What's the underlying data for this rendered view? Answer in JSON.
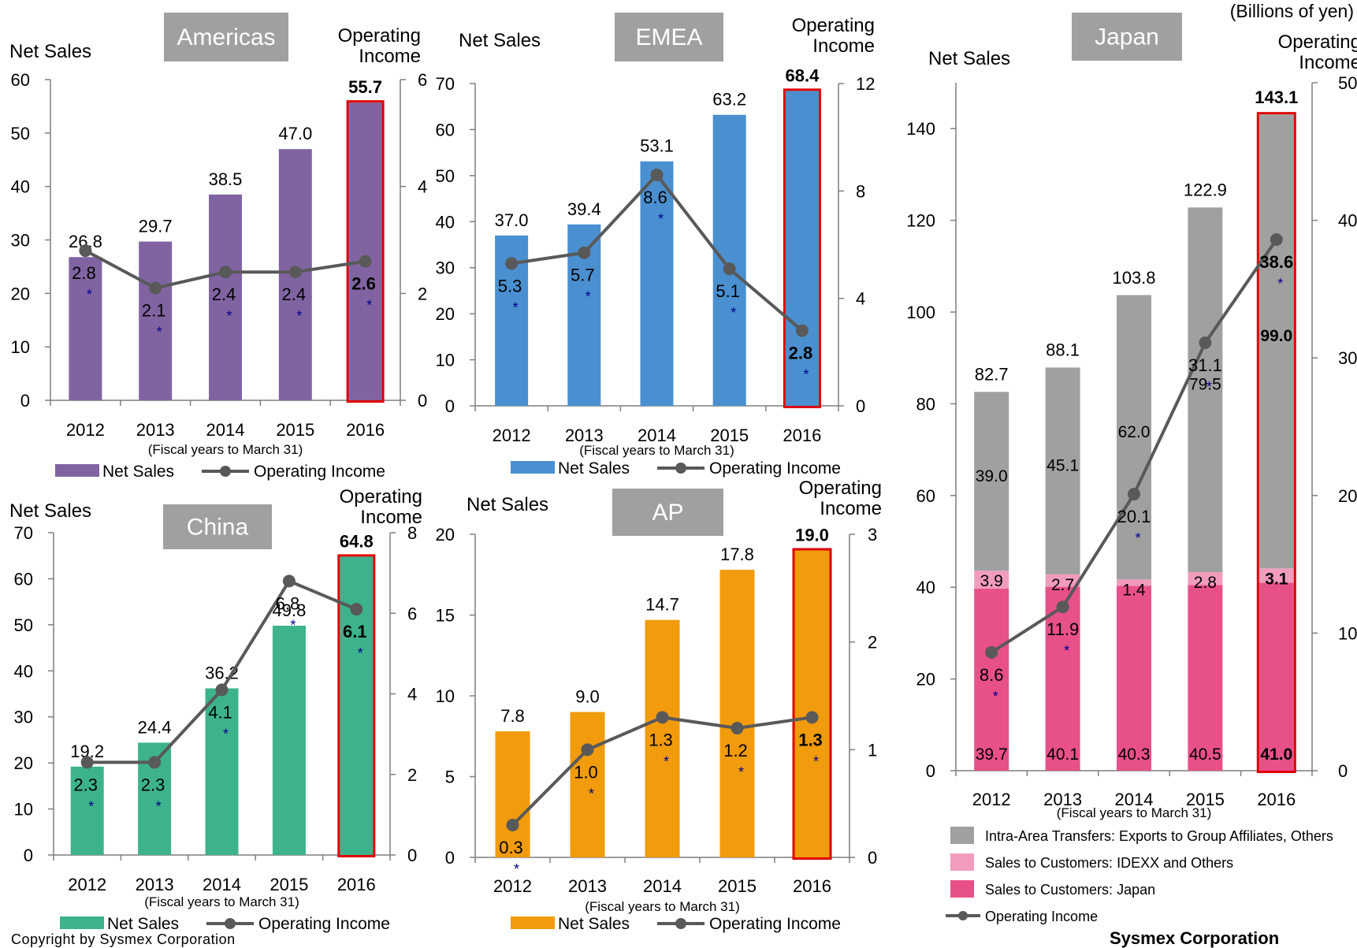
{
  "header": {
    "units": "(Billions of yen)"
  },
  "footer": {
    "copyright": "Copyright by Sysmex Corporation",
    "company": "Sysmex Corporation"
  },
  "common": {
    "y_left_label": "Net Sales",
    "y_right_label_line1": "Operating",
    "y_right_label_line2": "Income",
    "x_caption": "(Fiscal years to March 31)",
    "legend_net_sales": "Net Sales",
    "legend_operating_income": "Operating Income",
    "asterisk": "*"
  },
  "chart_data": [
    {
      "id": "americas",
      "type": "bar",
      "title": "Americas",
      "categories": [
        "2012",
        "2013",
        "2014",
        "2015",
        "2016"
      ],
      "series": [
        {
          "name": "Net Sales",
          "values": [
            26.8,
            29.7,
            38.5,
            47.0,
            55.7
          ],
          "axis": "left",
          "color": "#8064a2"
        },
        {
          "name": "Operating Income",
          "values": [
            2.8,
            2.1,
            2.4,
            2.4,
            2.6
          ],
          "axis": "right",
          "type": "line",
          "color": "#595959"
        }
      ],
      "ylim": [
        0,
        60
      ],
      "y2lim": [
        0,
        6
      ],
      "yticks": [
        0,
        10,
        20,
        30,
        40,
        50,
        60
      ],
      "y2ticks": [
        0,
        2,
        4,
        6
      ]
    },
    {
      "id": "emea",
      "type": "bar",
      "title": "EMEA",
      "categories": [
        "2012",
        "2013",
        "2014",
        "2015",
        "2016"
      ],
      "series": [
        {
          "name": "Net Sales",
          "values": [
            37.0,
            39.4,
            53.1,
            63.2,
            68.4
          ],
          "axis": "left",
          "color": "#4a8fd0"
        },
        {
          "name": "Operating Income",
          "values": [
            5.3,
            5.7,
            8.6,
            5.1,
            2.8
          ],
          "axis": "right",
          "type": "line",
          "color": "#595959"
        }
      ],
      "ylim": [
        0,
        70
      ],
      "y2lim": [
        0,
        12
      ],
      "yticks": [
        0,
        10,
        20,
        30,
        40,
        50,
        60,
        70
      ],
      "y2ticks": [
        0,
        4,
        8,
        12
      ]
    },
    {
      "id": "china",
      "type": "bar",
      "title": "China",
      "categories": [
        "2012",
        "2013",
        "2014",
        "2015",
        "2016"
      ],
      "series": [
        {
          "name": "Net Sales",
          "values": [
            19.2,
            24.4,
            36.2,
            49.8,
            64.8
          ],
          "axis": "left",
          "color": "#3db38c"
        },
        {
          "name": "Operating Income",
          "values": [
            2.3,
            2.3,
            4.1,
            6.8,
            6.1
          ],
          "axis": "right",
          "type": "line",
          "color": "#595959"
        }
      ],
      "ylim": [
        0,
        70
      ],
      "y2lim": [
        0,
        8
      ],
      "yticks": [
        0,
        10,
        20,
        30,
        40,
        50,
        60,
        70
      ],
      "y2ticks": [
        0,
        2,
        4,
        6,
        8
      ]
    },
    {
      "id": "ap",
      "type": "bar",
      "title": "AP",
      "categories": [
        "2012",
        "2013",
        "2014",
        "2015",
        "2016"
      ],
      "series": [
        {
          "name": "Net Sales",
          "values": [
            7.8,
            9.0,
            14.7,
            17.8,
            19.0
          ],
          "axis": "left",
          "color": "#f29b0c"
        },
        {
          "name": "Operating Income",
          "values": [
            0.3,
            1.0,
            1.3,
            1.2,
            1.3
          ],
          "axis": "right",
          "type": "line",
          "color": "#595959"
        }
      ],
      "ylim": [
        0,
        20
      ],
      "y2lim": [
        0,
        3
      ],
      "yticks": [
        0,
        5,
        10,
        15,
        20
      ],
      "y2ticks": [
        0,
        1,
        2,
        3
      ]
    },
    {
      "id": "japan",
      "type": "bar",
      "stacked": true,
      "title": "Japan",
      "categories": [
        "2012",
        "2013",
        "2014",
        "2015",
        "2016"
      ],
      "totals": [
        82.7,
        88.1,
        103.8,
        122.9,
        143.1
      ],
      "series": [
        {
          "name": "Sales to Customers: Japan",
          "values": [
            39.7,
            40.1,
            40.3,
            40.5,
            41.0
          ],
          "color": "#e8508a"
        },
        {
          "name": "Sales to Customers: IDEXX and Others",
          "values": [
            3.9,
            2.7,
            1.4,
            2.8,
            3.1
          ],
          "color": "#f29cbd"
        },
        {
          "name": "Intra-Area Transfers: Exports to Group Affiliates, Others",
          "values": [
            39.0,
            45.1,
            62.0,
            79.5,
            99.0
          ],
          "color": "#a0a0a0"
        },
        {
          "name": "Operating Income",
          "values": [
            8.6,
            11.9,
            20.1,
            31.1,
            38.6
          ],
          "axis": "right",
          "type": "line",
          "color": "#595959"
        }
      ],
      "ylim": [
        0,
        150
      ],
      "y2lim": [
        0,
        50
      ],
      "yticks": [
        0,
        20,
        40,
        60,
        80,
        100,
        120,
        140
      ],
      "y2ticks": [
        0,
        10,
        20,
        30,
        40,
        50
      ]
    }
  ]
}
